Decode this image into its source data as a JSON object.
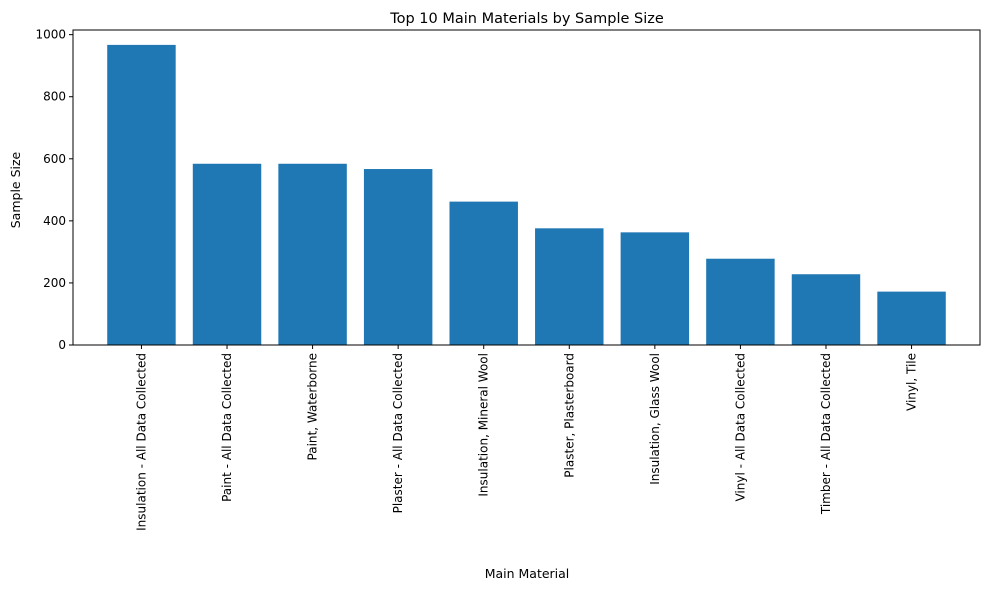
{
  "chart_data": {
    "type": "bar",
    "title": "Top 10 Main Materials by Sample Size",
    "xlabel": "Main Material",
    "ylabel": "Sample Size",
    "categories": [
      "Insulation - All Data Collected",
      "Paint - All Data Collected",
      "Paint, Waterborne",
      "Plaster - All Data Collected",
      "Insulation, Mineral Wool",
      "Plaster, Plasterboard",
      "Insulation, Glass Wool",
      "Vinyl - All Data Collected",
      "Timber - All Data Collected",
      "Vinyl, Tile"
    ],
    "values": [
      967,
      584,
      584,
      567,
      462,
      376,
      363,
      278,
      228,
      172
    ],
    "ylim": [
      0,
      1015
    ],
    "yticks": [
      0,
      200,
      400,
      600,
      800,
      1000
    ],
    "grid": false,
    "bar_color": "#1f77b4"
  }
}
